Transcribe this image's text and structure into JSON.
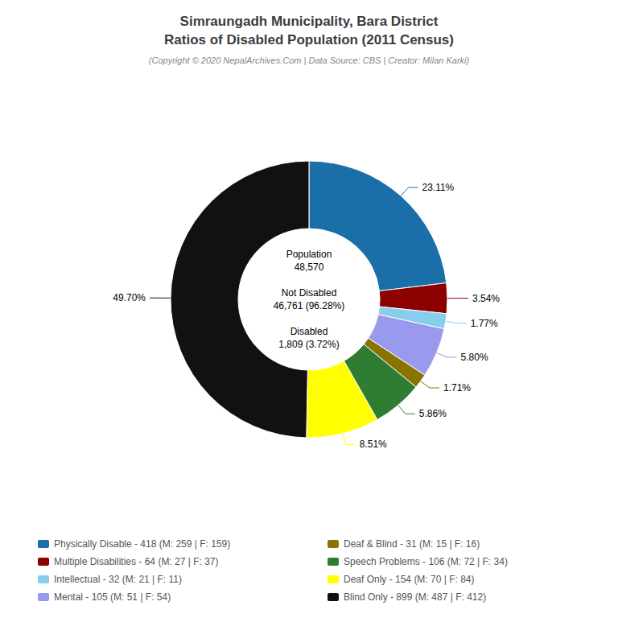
{
  "chart_data": {
    "type": "pie",
    "title": "Simraungadh Municipality, Bara District\nRatios of Disabled Population (2011 Census)",
    "subtitle": "(Copyright © 2020 NepalArchives.Com | Data Source: CBS | Creator: Milan Karki)",
    "annotations": [
      "Population\n48,570\n\nNot Disabled\n46,761 (96.28%)\n\nDisabled\n1,809 (3.72%)"
    ],
    "categories": [
      "Physically Disable - 418 (M: 259 | F: 159)",
      "Multiple Disabilities - 64 (M: 27 | F: 37)",
      "Intellectual - 32 (M: 21 | F: 11)",
      "Mental - 105 (M: 51 | F: 54)",
      "Deaf & Blind - 31 (M: 15 | F: 16)",
      "Speech Problems - 106 (M: 72 | F: 34)",
      "Deaf Only - 154 (M: 70 | F: 84)",
      "Blind Only - 899 (M: 487 | F: 412)"
    ],
    "values": [
      23.11,
      3.54,
      1.77,
      5.8,
      1.71,
      5.86,
      8.51,
      49.7
    ],
    "value_labels": [
      "23.11%",
      "3.54%",
      "1.77%",
      "5.80%",
      "1.71%",
      "5.86%",
      "8.51%",
      "49.70%"
    ],
    "colors": [
      "#1a6fa8",
      "#8b0000",
      "#87ceeb",
      "#9999ee",
      "#8b7300",
      "#2e7d32",
      "#ffff00",
      "#111111"
    ],
    "data_labels": true,
    "legend": "bottom"
  }
}
